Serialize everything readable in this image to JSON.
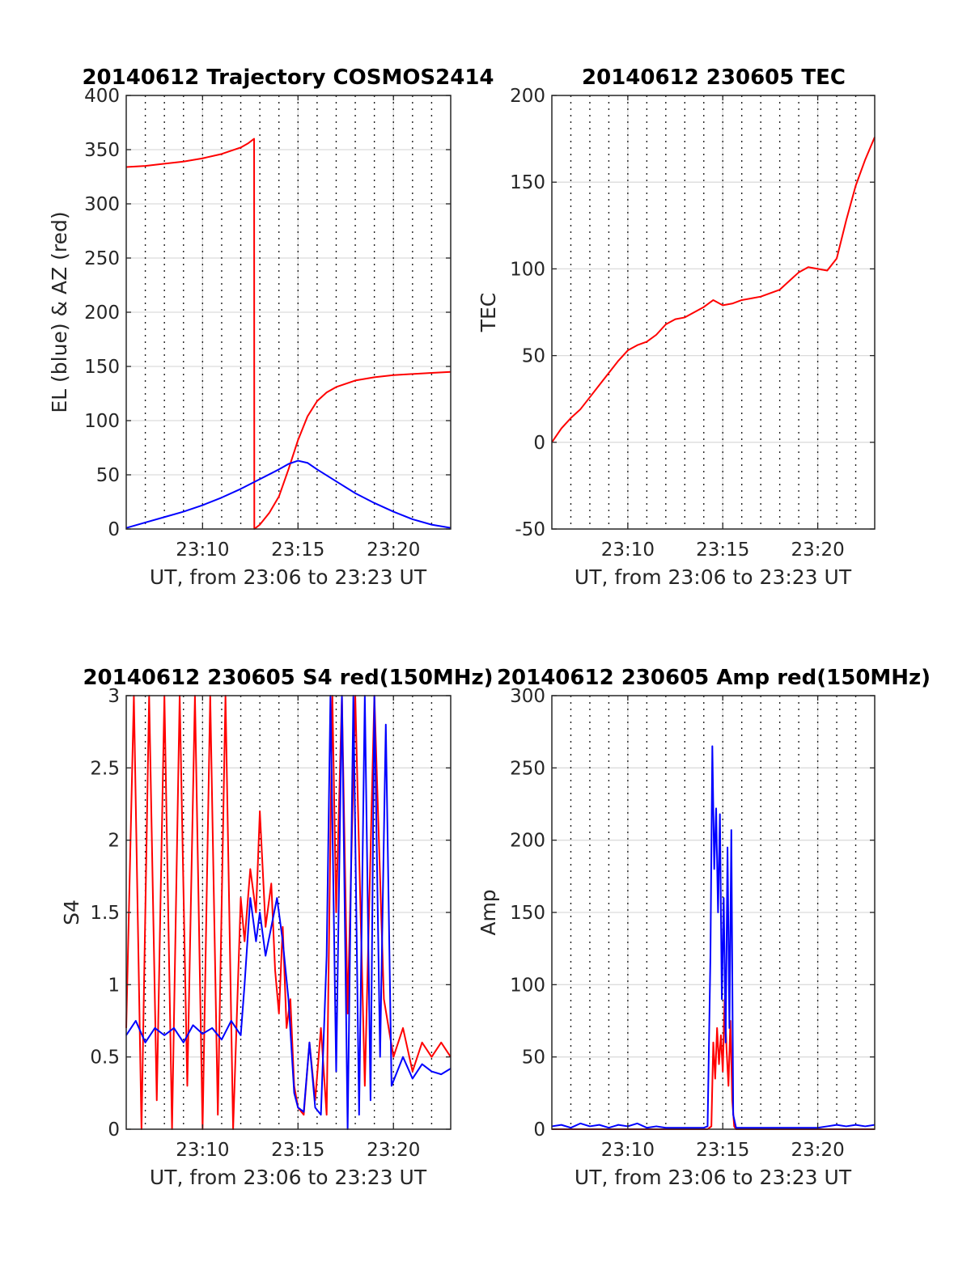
{
  "colors": {
    "red": "#ff0000",
    "blue": "#0000ff"
  },
  "chart_data": [
    {
      "id": "p1",
      "type": "line",
      "title": "20140612 Trajectory COSMOS2414",
      "xlabel": "UT, from 23:06 to 23:23 UT",
      "ylabel": "EL (blue) & AZ (red)",
      "xlim": [
        0,
        17
      ],
      "ylim": [
        0,
        400
      ],
      "xticks": [
        {
          "v": 4,
          "label": "23:10"
        },
        {
          "v": 9,
          "label": "23:15"
        },
        {
          "v": 14,
          "label": "23:20"
        }
      ],
      "yticks": [
        {
          "v": 0,
          "label": "0"
        },
        {
          "v": 50,
          "label": "50"
        },
        {
          "v": 100,
          "label": "100"
        },
        {
          "v": 150,
          "label": "150"
        },
        {
          "v": 200,
          "label": "200"
        },
        {
          "v": 250,
          "label": "250"
        },
        {
          "v": 300,
          "label": "300"
        },
        {
          "v": 350,
          "label": "350"
        },
        {
          "v": 400,
          "label": "400"
        }
      ],
      "grid": true,
      "series": [
        {
          "color": "red",
          "x": [
            0,
            1,
            2,
            3,
            4,
            5,
            6,
            6.4,
            6.7,
            6.71,
            7,
            7.5,
            8,
            8.5,
            9,
            9.5,
            10,
            10.5,
            11,
            12,
            13,
            14,
            15,
            16,
            17
          ],
          "y": [
            334,
            335,
            337,
            339,
            342,
            346,
            352,
            356,
            360,
            0,
            4,
            15,
            30,
            55,
            82,
            104,
            118,
            126,
            131,
            137,
            140,
            142,
            143,
            144,
            145
          ]
        },
        {
          "color": "blue",
          "x": [
            0,
            1,
            2,
            3,
            4,
            5,
            6,
            7,
            8,
            8.5,
            9,
            9.5,
            10,
            11,
            12,
            13,
            14,
            15,
            16,
            17
          ],
          "y": [
            1,
            6,
            11,
            16,
            22,
            29,
            37,
            46,
            55,
            60,
            63,
            61,
            55,
            44,
            33,
            24,
            16,
            9,
            4,
            1
          ]
        }
      ]
    },
    {
      "id": "p2",
      "type": "line",
      "title": "20140612 230605 TEC",
      "xlabel": "UT, from 23:06 to 23:23 UT",
      "ylabel": "TEC",
      "xlim": [
        0,
        17
      ],
      "ylim": [
        -50,
        200
      ],
      "xticks": [
        {
          "v": 4,
          "label": "23:10"
        },
        {
          "v": 9,
          "label": "23:15"
        },
        {
          "v": 14,
          "label": "23:20"
        }
      ],
      "yticks": [
        {
          "v": -50,
          "label": "-50"
        },
        {
          "v": 0,
          "label": "0"
        },
        {
          "v": 50,
          "label": "50"
        },
        {
          "v": 100,
          "label": "100"
        },
        {
          "v": 150,
          "label": "150"
        },
        {
          "v": 200,
          "label": "200"
        }
      ],
      "grid": true,
      "series": [
        {
          "color": "red",
          "x": [
            0,
            0.5,
            1,
            1.5,
            2,
            2.5,
            3,
            3.5,
            4,
            4.5,
            5,
            5.5,
            6,
            6.5,
            7,
            7.5,
            8,
            8.5,
            9,
            9.5,
            10,
            10.5,
            11,
            11.5,
            12,
            12.5,
            13,
            13.5,
            14,
            14.5,
            15,
            15.5,
            16,
            16.5,
            17
          ],
          "y": [
            0,
            8,
            14,
            19,
            26,
            33,
            40,
            47,
            53,
            56,
            58,
            62,
            68,
            71,
            72,
            75,
            78,
            82,
            79,
            80,
            82,
            83,
            84,
            86,
            88,
            93,
            98,
            101,
            100,
            99,
            106,
            128,
            148,
            163,
            176
          ]
        }
      ]
    },
    {
      "id": "p3",
      "type": "line",
      "title": "20140612 230605 S4 red(150MHz)",
      "xlabel": "UT, from 23:06 to 23:23 UT",
      "ylabel": "S4",
      "xlim": [
        0,
        17
      ],
      "ylim": [
        0,
        3
      ],
      "xticks": [
        {
          "v": 4,
          "label": "23:10"
        },
        {
          "v": 9,
          "label": "23:15"
        },
        {
          "v": 14,
          "label": "23:20"
        }
      ],
      "yticks": [
        {
          "v": 0,
          "label": "0"
        },
        {
          "v": 0.5,
          "label": "0.5"
        },
        {
          "v": 1,
          "label": "1"
        },
        {
          "v": 1.5,
          "label": "1.5"
        },
        {
          "v": 2,
          "label": "2"
        },
        {
          "v": 2.5,
          "label": "2.5"
        },
        {
          "v": 3,
          "label": "3"
        }
      ],
      "grid": true,
      "series": [
        {
          "color": "red",
          "x": [
            0,
            0.4,
            0.8,
            1.2,
            1.6,
            2.0,
            2.4,
            2.8,
            3.2,
            3.6,
            4.0,
            4.4,
            4.8,
            5.2,
            5.6,
            6.0,
            6.2,
            6.5,
            6.8,
            7.0,
            7.3,
            7.6,
            7.8,
            8.0,
            8.2,
            8.4,
            8.6,
            8.8,
            9.0,
            9.3,
            9.6,
            9.9,
            10.2,
            10.5,
            10.8,
            11.0,
            11.3,
            11.6,
            12.0,
            12.5,
            13.0,
            13.5,
            14.0,
            14.5,
            15.0,
            15.5,
            16.0,
            16.5,
            17.0
          ],
          "y": [
            0.7,
            3,
            0,
            3,
            0.2,
            3,
            0,
            3,
            0.3,
            3,
            0,
            3,
            0.1,
            3,
            0,
            1.6,
            1.3,
            1.8,
            1.5,
            2.2,
            1.4,
            1.7,
            1.1,
            0.8,
            1.4,
            0.7,
            0.9,
            0.3,
            0.15,
            0.1,
            0.6,
            0.2,
            0.7,
            0.1,
            3,
            1.5,
            3,
            0.8,
            3,
            0.3,
            3,
            0.9,
            0.5,
            0.7,
            0.4,
            0.6,
            0.5,
            0.6,
            0.5
          ]
        },
        {
          "color": "blue",
          "x": [
            0,
            0.5,
            1.0,
            1.5,
            2.0,
            2.5,
            3.0,
            3.5,
            4.0,
            4.5,
            5.0,
            5.5,
            6.0,
            6.2,
            6.5,
            6.8,
            7.0,
            7.3,
            7.6,
            7.9,
            8.2,
            8.5,
            8.8,
            9.0,
            9.3,
            9.6,
            9.9,
            10.2,
            10.5,
            10.7,
            11.0,
            11.3,
            11.6,
            11.9,
            12.2,
            12.5,
            12.8,
            13.0,
            13.3,
            13.6,
            13.9,
            14.2,
            14.5,
            15.0,
            15.5,
            16.0,
            16.5,
            17.0
          ],
          "y": [
            0.65,
            0.75,
            0.6,
            0.7,
            0.65,
            0.7,
            0.6,
            0.72,
            0.66,
            0.7,
            0.62,
            0.75,
            0.65,
            1.0,
            1.6,
            1.3,
            1.5,
            1.2,
            1.4,
            1.6,
            1.3,
            0.9,
            0.25,
            0.15,
            0.12,
            0.6,
            0.15,
            0.1,
            1.2,
            3,
            0.4,
            3,
            0,
            3,
            0.1,
            3,
            0.2,
            3,
            0.5,
            2.8,
            0.3,
            0.4,
            0.5,
            0.35,
            0.45,
            0.4,
            0.38,
            0.42
          ]
        }
      ]
    },
    {
      "id": "p4",
      "type": "line",
      "title": "20140612 230605 Amp red(150MHz)",
      "xlabel": "UT, from 23:06 to 23:23 UT",
      "ylabel": "Amp",
      "xlim": [
        0,
        17
      ],
      "ylim": [
        0,
        300
      ],
      "xticks": [
        {
          "v": 4,
          "label": "23:10"
        },
        {
          "v": 9,
          "label": "23:15"
        },
        {
          "v": 14,
          "label": "23:20"
        }
      ],
      "yticks": [
        {
          "v": 0,
          "label": "0"
        },
        {
          "v": 50,
          "label": "50"
        },
        {
          "v": 100,
          "label": "100"
        },
        {
          "v": 150,
          "label": "150"
        },
        {
          "v": 200,
          "label": "200"
        },
        {
          "v": 250,
          "label": "250"
        },
        {
          "v": 300,
          "label": "300"
        }
      ],
      "grid": true,
      "series": [
        {
          "color": "red",
          "x": [
            0,
            8.2,
            8.4,
            8.5,
            8.6,
            8.7,
            8.8,
            8.9,
            9.0,
            9.1,
            9.2,
            9.3,
            9.4,
            9.5,
            9.6,
            9.7,
            17
          ],
          "y": [
            0,
            0,
            2,
            60,
            35,
            70,
            45,
            65,
            40,
            90,
            55,
            30,
            75,
            20,
            2,
            0,
            0
          ]
        },
        {
          "color": "blue",
          "x": [
            0,
            0.5,
            1,
            1.5,
            2,
            2.5,
            3,
            3.5,
            4,
            4.5,
            5,
            5.5,
            6,
            6.5,
            7,
            7.5,
            8,
            8.2,
            8.35,
            8.45,
            8.55,
            8.65,
            8.75,
            8.85,
            8.95,
            9.05,
            9.15,
            9.25,
            9.35,
            9.45,
            9.55,
            9.7,
            10,
            11,
            12,
            13,
            14,
            14.5,
            15,
            15.5,
            16,
            16.5,
            17
          ],
          "y": [
            2,
            3,
            1,
            4,
            2,
            3,
            1,
            3,
            2,
            4,
            1,
            2,
            1,
            1,
            1,
            1,
            1,
            2,
            120,
            265,
            180,
            222,
            150,
            218,
            90,
            160,
            60,
            195,
            70,
            207,
            10,
            1,
            1,
            1,
            1,
            1,
            1,
            2,
            3,
            2,
            3,
            2,
            3
          ]
        }
      ]
    }
  ]
}
